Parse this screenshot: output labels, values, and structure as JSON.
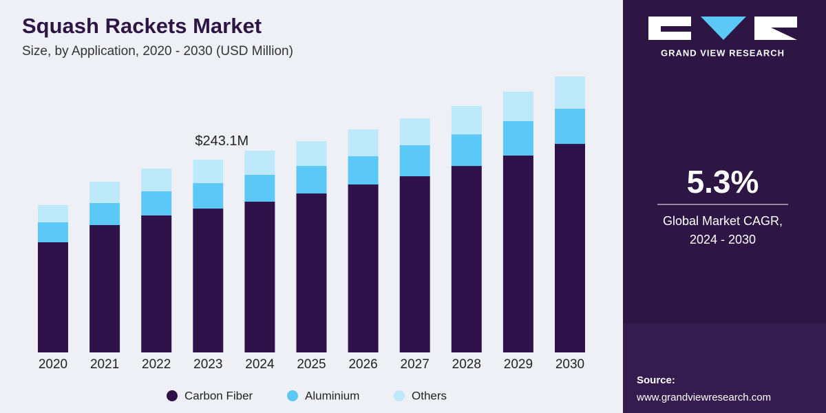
{
  "chart_data": {
    "type": "stacked_bar",
    "title": "Squash Rackets Market",
    "subtitle": "Size, by Application, 2020 - 2030 (USD Million)",
    "categories": [
      "2020",
      "2021",
      "2022",
      "2023",
      "2024",
      "2025",
      "2026",
      "2027",
      "2028",
      "2029",
      "2030"
    ],
    "series": [
      {
        "name": "Carbon Fiber",
        "color": "#2e1249",
        "values": [
          138.9,
          160.6,
          172.8,
          181.4,
          190.1,
          200.5,
          211.8,
          222.2,
          235.2,
          248.3,
          263.0
        ]
      },
      {
        "name": "Aluminium",
        "color": "#5bc8f5",
        "values": [
          25.2,
          27.8,
          30.4,
          32.1,
          33.9,
          34.7,
          35.6,
          39.1,
          39.9,
          43.4,
          44.3
        ]
      },
      {
        "name": "Others",
        "color": "#bde9fa",
        "values": [
          21.7,
          26.9,
          28.6,
          29.6,
          30.4,
          31.3,
          33.9,
          33.9,
          35.6,
          37.3,
          40.8
        ]
      }
    ],
    "annotations": [
      {
        "x": "2023",
        "value": 243.1,
        "label": "$243.1M"
      }
    ]
  },
  "sidebar": {
    "brand": "GRAND VIEW RESEARCH",
    "cagr": "5.3%",
    "cagr_label_1": "Global Market CAGR,",
    "cagr_label_2": "2024 - 2030",
    "source_label": "Source:",
    "source_url": "www.grandviewresearch.com"
  }
}
